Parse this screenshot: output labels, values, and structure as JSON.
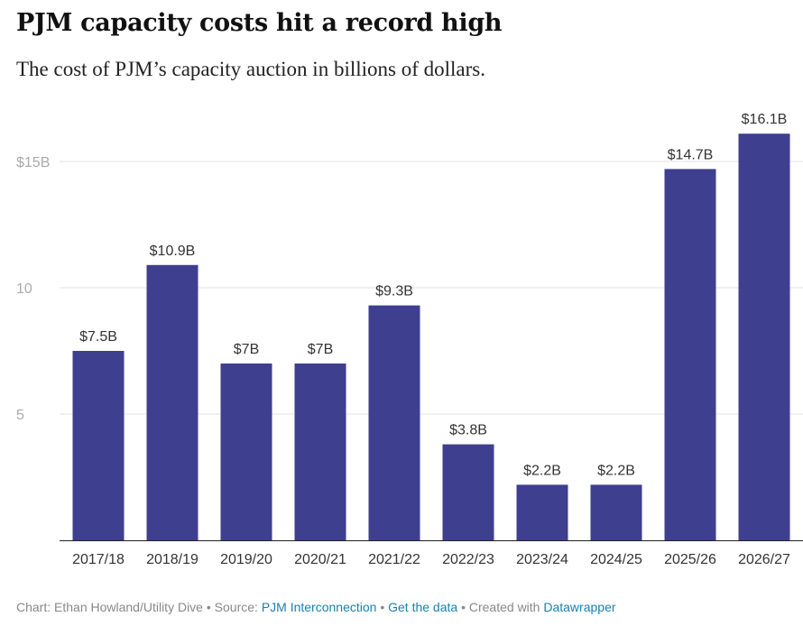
{
  "header": {
    "title": "PJM capacity costs hit a record high",
    "subtitle": "The cost of PJM’s capacity auction in billions of dollars."
  },
  "footer": {
    "credit": "Chart: Ethan Howland/Utility Dive",
    "source_prefix": "Source:",
    "source_link": "PJM Interconnection",
    "data_link": "Get the data",
    "created_prefix": "Created with",
    "tool_link": "Datawrapper"
  },
  "colors": {
    "bar": "#3f3f8f",
    "grid": "#e1e1e1",
    "axis_label": "#aaaaaa",
    "tick_label": "#333333",
    "value_label": "#333333",
    "link": "#1a7fb0"
  },
  "chart_data": {
    "type": "bar",
    "categories": [
      "2017/18",
      "2018/19",
      "2019/20",
      "2020/21",
      "2021/22",
      "2022/23",
      "2023/24",
      "2024/25",
      "2025/26",
      "2026/27"
    ],
    "values": [
      7.5,
      10.9,
      7,
      7,
      9.3,
      3.8,
      2.2,
      2.2,
      14.7,
      16.1
    ],
    "value_labels": [
      "$7.5B",
      "$10.9B",
      "$7B",
      "$7B",
      "$9.3B",
      "$3.8B",
      "$2.2B",
      "$2.2B",
      "$14.7B",
      "$16.1B"
    ],
    "y_ticks": [
      5,
      10,
      15
    ],
    "y_tick_labels": [
      "5",
      "10",
      "$15B"
    ],
    "ylim": [
      0,
      16.1
    ],
    "grid": true,
    "legend": "none"
  }
}
